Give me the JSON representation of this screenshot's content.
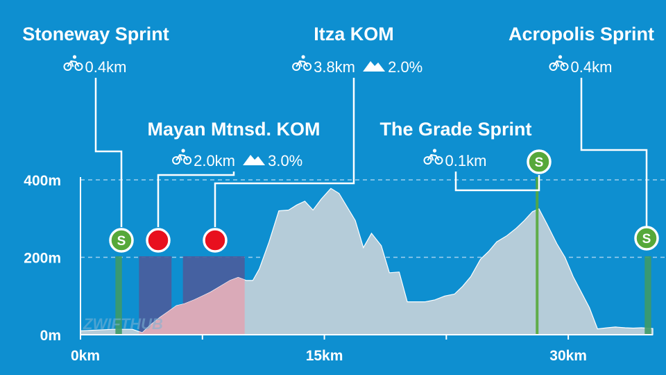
{
  "watermark": "ZWIFTHUB",
  "colors": {
    "background": "#0e8fd0",
    "elevation_fill": "#b5ccd9",
    "climb_fill": "#dca8b6",
    "kom_marker": "#e8101e",
    "sprint_marker": "#56a83a",
    "sprint_bar": "#3e9a67",
    "kom_box": "#4a5d9c",
    "gridline": "#9fd0ee"
  },
  "icons": {
    "distance": "bicycle-icon",
    "gradient": "mountain-icon"
  },
  "chart_data": {
    "type": "area",
    "title": "",
    "xlabel": "",
    "ylabel": "",
    "xlim": [
      0,
      35.2
    ],
    "ylim": [
      0,
      420
    ],
    "x_ticks": [
      {
        "value": 0,
        "label": "0km"
      },
      {
        "value": 15,
        "label": "15km"
      },
      {
        "value": 30,
        "label": "30km"
      }
    ],
    "y_ticks": [
      {
        "value": 0,
        "label": "0m"
      },
      {
        "value": 200,
        "label": "200m"
      },
      {
        "value": 400,
        "label": "400m"
      }
    ],
    "grid": "horizontal-dashed",
    "series": [
      {
        "x": [
          0,
          1,
          2,
          2.6,
          3.2,
          3.8,
          4.3,
          4.9,
          5.4,
          5.9,
          6.4,
          7.0,
          7.5,
          8.0,
          8.6,
          9.2,
          9.7,
          10.2,
          10.6,
          11.0,
          11.6,
          12.2,
          12.8,
          13.3,
          13.8,
          14.3,
          14.8,
          15.4,
          15.9,
          16.4,
          16.9,
          17.4,
          17.9,
          18.5,
          19.0,
          19.6,
          20.1,
          20.7,
          21.2,
          21.8,
          22.4,
          23.0,
          23.5,
          24.0,
          24.6,
          25.1,
          25.6,
          26.2,
          26.8,
          27.3,
          27.8,
          28.2,
          28.7,
          29.3,
          29.8,
          30.3,
          30.8,
          31.3,
          31.8,
          32.4,
          32.9,
          33.5,
          34.0,
          34.5,
          35.2
        ],
        "y": [
          10,
          12,
          14,
          14,
          14,
          5,
          25,
          45,
          60,
          75,
          80,
          90,
          100,
          110,
          125,
          140,
          148,
          140,
          140,
          170,
          240,
          320,
          322,
          335,
          345,
          322,
          350,
          378,
          365,
          330,
          295,
          225,
          262,
          230,
          160,
          162,
          85,
          85,
          85,
          90,
          100,
          105,
          125,
          150,
          195,
          215,
          240,
          255,
          275,
          295,
          318,
          325,
          285,
          235,
          200,
          150,
          110,
          70,
          15,
          18,
          20,
          18,
          17,
          18,
          16
        ]
      }
    ],
    "segments": [
      {
        "type": "sprint",
        "name": "Stoneway Sprint",
        "distance": "0.4km",
        "gradient": "",
        "start_km": 2.15,
        "end_km": 2.55
      },
      {
        "type": "kom",
        "name": "Mayan Mtnsd. KOM",
        "distance": "2.0km",
        "gradient": "3.0%",
        "start_km": 3.6,
        "end_km": 5.6
      },
      {
        "type": "kom",
        "name": "Itza KOM",
        "distance": "3.8km",
        "gradient": "2.0%",
        "start_km": 6.3,
        "end_km": 10.1
      },
      {
        "type": "sprint",
        "name": "The Grade Sprint",
        "distance": "0.1km",
        "gradient": "",
        "start_km": 28.0,
        "end_km": 28.1
      },
      {
        "type": "sprint",
        "name": "Acropolis Sprint",
        "distance": "0.4km",
        "gradient": "",
        "start_km": 34.7,
        "end_km": 35.1
      }
    ],
    "climb_highlight": {
      "start_km": 3.6,
      "end_km": 10.1
    }
  }
}
